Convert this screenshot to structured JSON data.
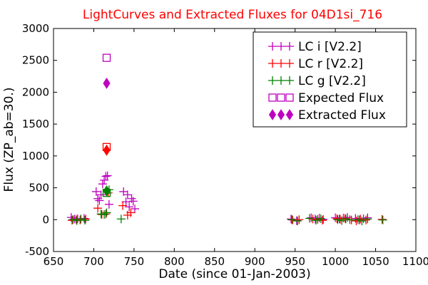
{
  "chart_data": {
    "type": "scatter",
    "title": "LightCurves and Extracted Fluxes for 04D1si_716",
    "title_color": "#ff0000",
    "xlabel": "Date (since 01-Jan-2003)",
    "ylabel": "Flux (ZP_ab=30.)",
    "xlim": [
      650,
      1100
    ],
    "ylim": [
      -500,
      3000
    ],
    "x_ticks": [
      650,
      700,
      750,
      800,
      850,
      900,
      950,
      1000,
      1050,
      1100
    ],
    "y_ticks": [
      -500,
      0,
      500,
      1000,
      1500,
      2000,
      2500,
      3000
    ],
    "grid": false,
    "legend_position": "top-right",
    "series": [
      {
        "name": "LC i [V2.2]",
        "marker": "plus",
        "color": "#bf00bf",
        "points": [
          [
            672,
            35
          ],
          [
            676,
            10
          ],
          [
            680,
            15
          ],
          [
            688,
            20
          ],
          [
            703,
            440
          ],
          [
            705,
            330
          ],
          [
            707,
            300
          ],
          [
            709,
            390
          ],
          [
            711,
            560
          ],
          [
            713,
            620
          ],
          [
            715,
            680
          ],
          [
            717,
            690
          ],
          [
            719,
            240
          ],
          [
            737,
            440
          ],
          [
            740,
            280
          ],
          [
            742,
            390
          ],
          [
            744,
            200
          ],
          [
            747,
            330
          ],
          [
            749,
            290
          ],
          [
            751,
            170
          ],
          [
            945,
            10
          ],
          [
            952,
            -15
          ],
          [
            970,
            30
          ],
          [
            975,
            10
          ],
          [
            980,
            25
          ],
          [
            985,
            5
          ],
          [
            1000,
            30
          ],
          [
            1005,
            15
          ],
          [
            1010,
            25
          ],
          [
            1015,
            35
          ],
          [
            1025,
            20
          ],
          [
            1030,
            -5
          ],
          [
            1035,
            15
          ],
          [
            1040,
            30
          ]
        ]
      },
      {
        "name": "LC r [V2.2]",
        "marker": "plus",
        "color": "#ff0000",
        "points": [
          [
            673,
            -10
          ],
          [
            678,
            5
          ],
          [
            683,
            -5
          ],
          [
            690,
            10
          ],
          [
            705,
            180
          ],
          [
            710,
            80
          ],
          [
            715,
            90
          ],
          [
            718,
            420
          ],
          [
            736,
            220
          ],
          [
            742,
            70
          ],
          [
            746,
            110
          ],
          [
            947,
            -5
          ],
          [
            955,
            0
          ],
          [
            972,
            10
          ],
          [
            978,
            5
          ],
          [
            984,
            -10
          ],
          [
            1002,
            15
          ],
          [
            1006,
            5
          ],
          [
            1012,
            20
          ],
          [
            1018,
            0
          ],
          [
            1026,
            -20
          ],
          [
            1031,
            10
          ],
          [
            1038,
            -5
          ],
          [
            1058,
            5
          ]
        ]
      },
      {
        "name": "LC g [V2.2]",
        "marker": "plus",
        "color": "#008000",
        "points": [
          [
            674,
            0
          ],
          [
            679,
            -15
          ],
          [
            684,
            10
          ],
          [
            689,
            -10
          ],
          [
            709,
            90
          ],
          [
            713,
            80
          ],
          [
            716,
            110
          ],
          [
            719,
            470
          ],
          [
            734,
            10
          ],
          [
            946,
            0
          ],
          [
            953,
            -20
          ],
          [
            968,
            20
          ],
          [
            976,
            -10
          ],
          [
            982,
            15
          ],
          [
            1003,
            0
          ],
          [
            1008,
            -15
          ],
          [
            1013,
            10
          ],
          [
            1020,
            -5
          ],
          [
            1028,
            0
          ],
          [
            1033,
            -20
          ],
          [
            1040,
            10
          ],
          [
            1059,
            -5
          ]
        ]
      },
      {
        "name": "Expected Flux",
        "marker": "open-square",
        "color": "#bf00bf",
        "points": [
          [
            716,
            2540
          ],
          [
            716,
            1140
          ],
          [
            716,
            420
          ]
        ],
        "point_colors": [
          "#bf00bf",
          "#ff0000",
          "#008000"
        ]
      },
      {
        "name": "Extracted Flux",
        "marker": "filled-diamond",
        "color": "#bf00bf",
        "points": [
          [
            716,
            2140
          ],
          [
            716,
            1090
          ],
          [
            716,
            450
          ]
        ],
        "point_colors": [
          "#bf00bf",
          "#ff0000",
          "#008000"
        ]
      }
    ]
  }
}
